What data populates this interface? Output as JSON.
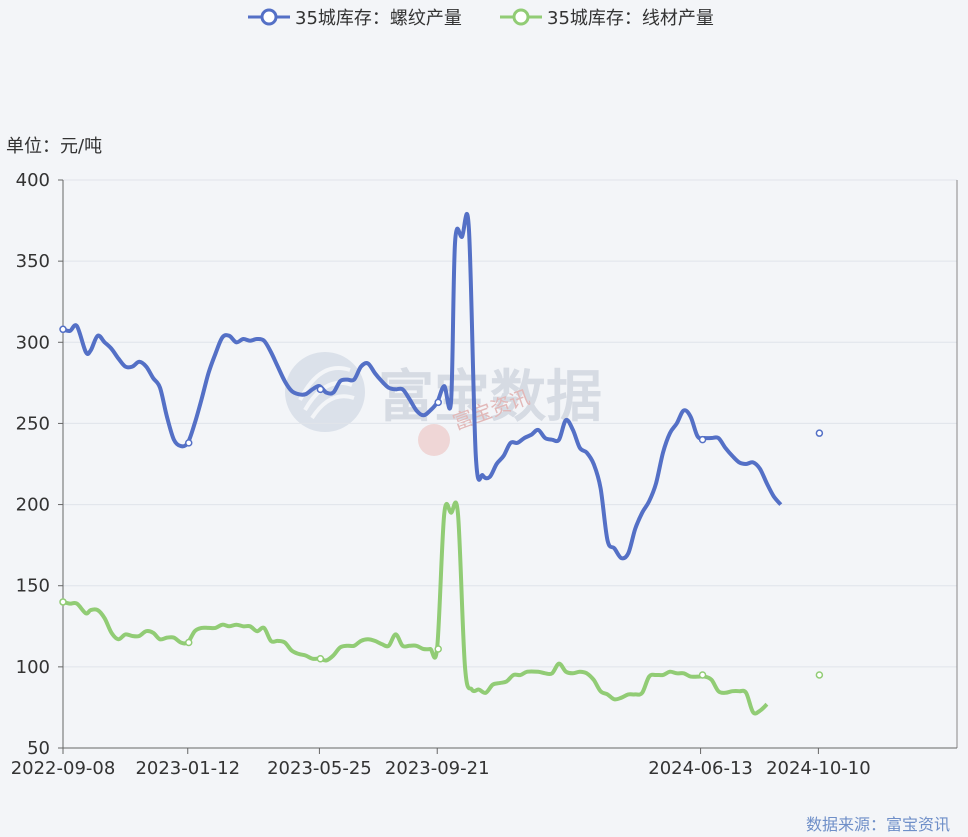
{
  "chart_data": {
    "type": "line",
    "unit_label": "单位：元/吨",
    "source": "数据来源：富宝资讯",
    "watermark": "富宝数据",
    "watermark_small": "富宝资讯",
    "ylim": [
      50,
      400
    ],
    "yticks": [
      50,
      100,
      150,
      200,
      250,
      300,
      350,
      400
    ],
    "xlim": [
      "2022-09-08",
      "2025-02-27"
    ],
    "xticks": [
      "2022-09-08",
      "2023-01-12",
      "2023-05-25",
      "2023-09-21",
      "2024-06-13",
      "2024-10-10"
    ],
    "grid": true,
    "legend_position": "top-center",
    "series": [
      {
        "name": "35城库存：螺纹产量",
        "color": "#5470c6",
        "markers": [
          [
            "2022-09-08",
            308
          ],
          [
            "2023-01-13",
            238
          ],
          [
            "2023-05-26",
            271
          ],
          [
            "2023-09-22",
            263
          ],
          [
            "2024-06-15",
            240
          ],
          [
            "2024-10-11",
            244
          ]
        ],
        "points": [
          [
            "2022-09-08",
            308
          ],
          [
            "2022-09-15",
            307
          ],
          [
            "2022-09-22",
            310
          ],
          [
            "2022-10-01",
            294
          ],
          [
            "2022-10-06",
            295
          ],
          [
            "2022-10-13",
            304
          ],
          [
            "2022-10-20",
            300
          ],
          [
            "2022-10-27",
            296
          ],
          [
            "2022-11-03",
            290
          ],
          [
            "2022-11-10",
            285
          ],
          [
            "2022-11-17",
            285
          ],
          [
            "2022-11-24",
            288
          ],
          [
            "2022-12-01",
            285
          ],
          [
            "2022-12-08",
            278
          ],
          [
            "2022-12-15",
            272
          ],
          [
            "2022-12-22",
            254
          ],
          [
            "2022-12-29",
            240
          ],
          [
            "2023-01-05",
            236
          ],
          [
            "2023-01-12",
            238
          ],
          [
            "2023-01-19",
            250
          ],
          [
            "2023-01-26",
            265
          ],
          [
            "2023-02-02",
            281
          ],
          [
            "2023-02-09",
            293
          ],
          [
            "2023-02-16",
            303
          ],
          [
            "2023-02-23",
            304
          ],
          [
            "2023-03-02",
            300
          ],
          [
            "2023-03-09",
            302
          ],
          [
            "2023-03-16",
            301
          ],
          [
            "2023-03-23",
            302
          ],
          [
            "2023-03-30",
            301
          ],
          [
            "2023-04-06",
            294
          ],
          [
            "2023-04-13",
            285
          ],
          [
            "2023-04-20",
            276
          ],
          [
            "2023-04-27",
            270
          ],
          [
            "2023-05-04",
            268
          ],
          [
            "2023-05-11",
            268
          ],
          [
            "2023-05-18",
            271
          ],
          [
            "2023-05-25",
            273
          ],
          [
            "2023-06-01",
            269
          ],
          [
            "2023-06-08",
            269
          ],
          [
            "2023-06-15",
            276
          ],
          [
            "2023-06-22",
            277
          ],
          [
            "2023-06-29",
            277
          ],
          [
            "2023-07-06",
            285
          ],
          [
            "2023-07-13",
            287
          ],
          [
            "2023-07-20",
            281
          ],
          [
            "2023-07-27",
            276
          ],
          [
            "2023-08-03",
            272
          ],
          [
            "2023-08-10",
            271
          ],
          [
            "2023-08-17",
            271
          ],
          [
            "2023-08-24",
            265
          ],
          [
            "2023-08-31",
            258
          ],
          [
            "2023-09-07",
            255
          ],
          [
            "2023-09-14",
            258
          ],
          [
            "2023-09-21",
            263
          ],
          [
            "2023-09-28",
            273
          ],
          [
            "2023-10-05",
            264
          ],
          [
            "2023-10-09",
            362
          ],
          [
            "2023-10-16",
            365
          ],
          [
            "2023-10-23",
            370
          ],
          [
            "2023-10-30",
            230
          ],
          [
            "2023-11-06",
            218
          ],
          [
            "2023-11-13",
            217
          ],
          [
            "2023-11-20",
            225
          ],
          [
            "2023-11-27",
            230
          ],
          [
            "2023-12-04",
            238
          ],
          [
            "2023-12-11",
            238
          ],
          [
            "2023-12-18",
            241
          ],
          [
            "2023-12-25",
            243
          ],
          [
            "2024-01-01",
            246
          ],
          [
            "2024-01-08",
            241
          ],
          [
            "2024-01-15",
            240
          ],
          [
            "2024-01-22",
            240
          ],
          [
            "2024-01-29",
            252
          ],
          [
            "2024-02-05",
            246
          ],
          [
            "2024-02-12",
            235
          ],
          [
            "2024-02-19",
            232
          ],
          [
            "2024-02-26",
            225
          ],
          [
            "2024-03-04",
            210
          ],
          [
            "2024-03-11",
            178
          ],
          [
            "2024-03-18",
            173
          ],
          [
            "2024-03-25",
            167
          ],
          [
            "2024-04-01",
            170
          ],
          [
            "2024-04-08",
            185
          ],
          [
            "2024-04-15",
            195
          ],
          [
            "2024-04-22",
            202
          ],
          [
            "2024-04-29",
            213
          ],
          [
            "2024-05-06",
            232
          ],
          [
            "2024-05-13",
            244
          ],
          [
            "2024-05-20",
            250
          ],
          [
            "2024-05-27",
            258
          ],
          [
            "2024-06-03",
            254
          ],
          [
            "2024-06-10",
            242
          ],
          [
            "2024-06-17",
            241
          ],
          [
            "2024-06-24",
            241
          ],
          [
            "2024-07-01",
            241
          ],
          [
            "2024-07-08",
            235
          ],
          [
            "2024-07-15",
            230
          ],
          [
            "2024-07-22",
            226
          ],
          [
            "2024-07-29",
            225
          ],
          [
            "2024-08-05",
            226
          ],
          [
            "2024-08-12",
            222
          ],
          [
            "2024-08-19",
            213
          ],
          [
            "2024-08-26",
            205
          ],
          [
            "2024-09-02",
            200
          ]
        ]
      },
      {
        "name": "35城库存：线材产量",
        "color": "#91cc75",
        "markers": [
          [
            "2022-09-08",
            140
          ],
          [
            "2023-01-13",
            115
          ],
          [
            "2023-05-26",
            105
          ],
          [
            "2023-09-22",
            111
          ],
          [
            "2024-06-15",
            95
          ],
          [
            "2024-10-11",
            95
          ]
        ],
        "points": [
          [
            "2022-09-08",
            140
          ],
          [
            "2022-09-15",
            139
          ],
          [
            "2022-09-22",
            139
          ],
          [
            "2022-10-01",
            133
          ],
          [
            "2022-10-06",
            135
          ],
          [
            "2022-10-13",
            135
          ],
          [
            "2022-10-20",
            130
          ],
          [
            "2022-10-27",
            121
          ],
          [
            "2022-11-03",
            117
          ],
          [
            "2022-11-10",
            120
          ],
          [
            "2022-11-17",
            119
          ],
          [
            "2022-11-24",
            119
          ],
          [
            "2022-12-01",
            122
          ],
          [
            "2022-12-08",
            121
          ],
          [
            "2022-12-15",
            117
          ],
          [
            "2022-12-22",
            118
          ],
          [
            "2022-12-29",
            118
          ],
          [
            "2023-01-05",
            115
          ],
          [
            "2023-01-12",
            115
          ],
          [
            "2023-01-19",
            122
          ],
          [
            "2023-01-26",
            124
          ],
          [
            "2023-02-02",
            124
          ],
          [
            "2023-02-09",
            124
          ],
          [
            "2023-02-16",
            126
          ],
          [
            "2023-02-23",
            125
          ],
          [
            "2023-03-02",
            126
          ],
          [
            "2023-03-09",
            125
          ],
          [
            "2023-03-16",
            125
          ],
          [
            "2023-03-23",
            122
          ],
          [
            "2023-03-30",
            124
          ],
          [
            "2023-04-06",
            116
          ],
          [
            "2023-04-13",
            116
          ],
          [
            "2023-04-20",
            115
          ],
          [
            "2023-04-27",
            110
          ],
          [
            "2023-05-04",
            108
          ],
          [
            "2023-05-11",
            107
          ],
          [
            "2023-05-18",
            105
          ],
          [
            "2023-05-25",
            105
          ],
          [
            "2023-06-01",
            104
          ],
          [
            "2023-06-08",
            107
          ],
          [
            "2023-06-15",
            112
          ],
          [
            "2023-06-22",
            113
          ],
          [
            "2023-06-29",
            113
          ],
          [
            "2023-07-06",
            116
          ],
          [
            "2023-07-13",
            117
          ],
          [
            "2023-07-20",
            116
          ],
          [
            "2023-07-27",
            114
          ],
          [
            "2023-08-03",
            113
          ],
          [
            "2023-08-10",
            120
          ],
          [
            "2023-08-17",
            113
          ],
          [
            "2023-08-24",
            113
          ],
          [
            "2023-08-31",
            113
          ],
          [
            "2023-09-07",
            111
          ],
          [
            "2023-09-14",
            111
          ],
          [
            "2023-09-21",
            112
          ],
          [
            "2023-09-28",
            194
          ],
          [
            "2023-10-05",
            195
          ],
          [
            "2023-10-12",
            194
          ],
          [
            "2023-10-19",
            100
          ],
          [
            "2023-10-26",
            86
          ],
          [
            "2023-11-02",
            86
          ],
          [
            "2023-11-09",
            84
          ],
          [
            "2023-11-16",
            89
          ],
          [
            "2023-11-23",
            90
          ],
          [
            "2023-11-30",
            91
          ],
          [
            "2023-12-07",
            95
          ],
          [
            "2023-12-14",
            95
          ],
          [
            "2023-12-21",
            97
          ],
          [
            "2024-01-01",
            97
          ],
          [
            "2024-01-08",
            96
          ],
          [
            "2024-01-15",
            96
          ],
          [
            "2024-01-22",
            102
          ],
          [
            "2024-01-29",
            97
          ],
          [
            "2024-02-05",
            96
          ],
          [
            "2024-02-12",
            97
          ],
          [
            "2024-02-19",
            96
          ],
          [
            "2024-02-26",
            92
          ],
          [
            "2024-03-04",
            85
          ],
          [
            "2024-03-11",
            83
          ],
          [
            "2024-03-18",
            80
          ],
          [
            "2024-03-25",
            81
          ],
          [
            "2024-04-01",
            83
          ],
          [
            "2024-04-08",
            83
          ],
          [
            "2024-04-15",
            84
          ],
          [
            "2024-04-22",
            94
          ],
          [
            "2024-04-29",
            95
          ],
          [
            "2024-05-06",
            95
          ],
          [
            "2024-05-13",
            97
          ],
          [
            "2024-05-20",
            96
          ],
          [
            "2024-05-27",
            96
          ],
          [
            "2024-06-03",
            94
          ],
          [
            "2024-06-10",
            94
          ],
          [
            "2024-06-17",
            94
          ],
          [
            "2024-06-24",
            92
          ],
          [
            "2024-07-01",
            85
          ],
          [
            "2024-07-08",
            84
          ],
          [
            "2024-07-15",
            85
          ],
          [
            "2024-07-22",
            85
          ],
          [
            "2024-07-29",
            84
          ],
          [
            "2024-08-05",
            72
          ],
          [
            "2024-08-12",
            73
          ],
          [
            "2024-08-19",
            77
          ]
        ]
      }
    ]
  }
}
